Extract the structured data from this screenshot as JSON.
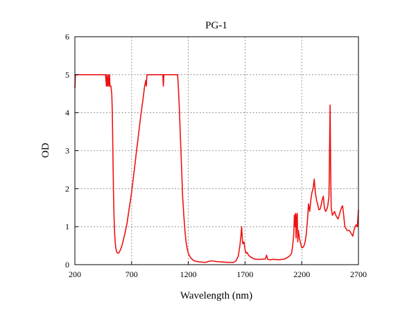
{
  "chart_data": {
    "type": "line",
    "title": "PG-1",
    "xlabel": "Wavelength (nm)",
    "ylabel": "OD",
    "xlim": [
      200,
      2700
    ],
    "ylim": [
      0,
      6
    ],
    "xticks": [
      200,
      700,
      1200,
      1700,
      2200,
      2700
    ],
    "yticks": [
      0,
      1,
      2,
      3,
      4,
      5,
      6
    ],
    "xtick_labels": [
      "200",
      "700",
      "1200",
      "1700",
      "2200",
      "2700"
    ],
    "ytick_labels": [
      "0",
      "1",
      "2",
      "3",
      "4",
      "5",
      "6"
    ],
    "grid": true,
    "series_color": "#ee1111",
    "series": [
      {
        "x": [
          200,
          205,
          215,
          300,
          400,
          470,
          478,
          482,
          488,
          495,
          500,
          505,
          510,
          518,
          525,
          530,
          535,
          540,
          545,
          550,
          555,
          560,
          570,
          580,
          590,
          600,
          610,
          620,
          640,
          660,
          680,
          700,
          720,
          740,
          760,
          780,
          800,
          815,
          825,
          830,
          835,
          840,
          850,
          900,
          950,
          975,
          980,
          985,
          1000,
          1050,
          1100,
          1105,
          1110,
          1120,
          1130,
          1140,
          1150,
          1160,
          1170,
          1180,
          1190,
          1200,
          1220,
          1250,
          1300,
          1350,
          1400,
          1450,
          1500,
          1550,
          1600,
          1620,
          1640,
          1655,
          1665,
          1670,
          1675,
          1680,
          1690,
          1700,
          1710,
          1720,
          1730,
          1750,
          1780,
          1800,
          1840,
          1880,
          1890,
          1900,
          1920,
          1950,
          2000,
          2050,
          2080,
          2100,
          2110,
          2120,
          2130,
          2135,
          2140,
          2145,
          2150,
          2155,
          2160,
          2165,
          2170,
          2180,
          2190,
          2200,
          2210,
          2220,
          2230,
          2240,
          2250,
          2260,
          2270,
          2280,
          2290,
          2300,
          2310,
          2320,
          2330,
          2340,
          2350,
          2360,
          2370,
          2380,
          2390,
          2400,
          2410,
          2420,
          2430,
          2440,
          2445,
          2450,
          2455,
          2460,
          2470,
          2480,
          2490,
          2500,
          2510,
          2520,
          2530,
          2540,
          2550,
          2560,
          2570,
          2580,
          2590,
          2600,
          2620,
          2640,
          2650,
          2660,
          2670,
          2680,
          2690,
          2700
        ],
        "values": [
          4.65,
          5.0,
          5.0,
          5.0,
          5.0,
          5.0,
          4.7,
          5.0,
          4.7,
          5.0,
          4.7,
          5.0,
          4.7,
          4.7,
          4.5,
          4.0,
          3.0,
          2.0,
          1.3,
          0.85,
          0.6,
          0.45,
          0.32,
          0.3,
          0.32,
          0.38,
          0.46,
          0.56,
          0.8,
          1.1,
          1.5,
          1.9,
          2.4,
          2.9,
          3.4,
          3.9,
          4.35,
          4.7,
          4.85,
          4.7,
          5.0,
          5.0,
          5.0,
          5.0,
          5.0,
          5.0,
          4.7,
          5.0,
          5.0,
          5.0,
          5.0,
          5.0,
          4.8,
          4.2,
          3.4,
          2.6,
          1.8,
          1.3,
          0.9,
          0.6,
          0.42,
          0.3,
          0.18,
          0.1,
          0.07,
          0.06,
          0.1,
          0.08,
          0.07,
          0.06,
          0.06,
          0.1,
          0.22,
          0.5,
          0.8,
          1.0,
          0.75,
          0.55,
          0.6,
          0.4,
          0.3,
          0.32,
          0.25,
          0.2,
          0.15,
          0.14,
          0.14,
          0.15,
          0.25,
          0.14,
          0.13,
          0.14,
          0.13,
          0.15,
          0.2,
          0.25,
          0.3,
          0.5,
          0.8,
          1.3,
          1.0,
          1.35,
          0.7,
          1.3,
          1.35,
          0.6,
          0.9,
          0.7,
          0.55,
          0.45,
          0.45,
          0.5,
          0.6,
          0.8,
          1.15,
          1.6,
          1.4,
          1.7,
          1.9,
          2.0,
          2.25,
          1.9,
          1.7,
          1.6,
          1.45,
          1.45,
          1.55,
          1.7,
          1.8,
          1.5,
          1.4,
          1.45,
          1.55,
          1.8,
          3.0,
          4.2,
          2.5,
          1.5,
          1.3,
          1.35,
          1.4,
          1.3,
          1.25,
          1.2,
          1.3,
          1.4,
          1.5,
          1.55,
          1.3,
          1.0,
          0.95,
          0.9,
          0.9,
          0.8,
          0.75,
          0.9,
          1.0,
          1.05,
          1.0,
          1.45
        ]
      }
    ]
  }
}
